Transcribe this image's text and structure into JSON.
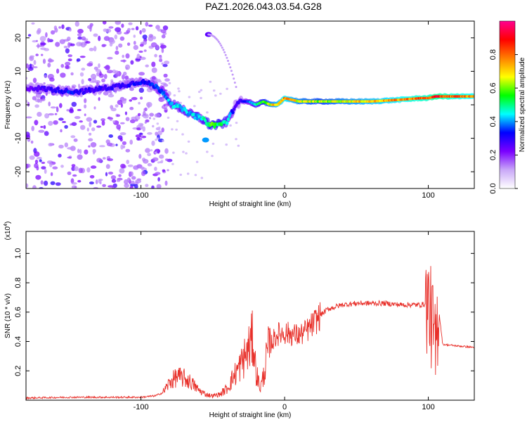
{
  "title": "PAZ1.2026.043.03.54.G28",
  "chart_data": [
    {
      "type": "heatmap",
      "xlabel": "Height of straight line (km)",
      "ylabel": "Frequency (Hz)",
      "xlim": [
        -180,
        132
      ],
      "ylim": [
        -25,
        25
      ],
      "xticks": [
        -100,
        0,
        100
      ],
      "xtick_labels": [
        "-100",
        "0",
        "100"
      ],
      "yticks": [
        -20,
        -10,
        0,
        10,
        20
      ],
      "ytick_labels": [
        "-20",
        "-10",
        "0",
        "10",
        "20"
      ],
      "colorbar": {
        "label": "Normalized spectral amplitude",
        "range": [
          0,
          1
        ],
        "ticks": [
          0.0,
          0.2,
          0.4,
          0.6,
          0.8
        ],
        "tick_labels": [
          "0.0",
          "0.2",
          "0.4",
          "0.6",
          "0.8"
        ],
        "colormap": [
          "#ffffff",
          "#c9a8f8",
          "#7b00ff",
          "#0000ff",
          "#00ffff",
          "#00ff00",
          "#ffff00",
          "#ff8000",
          "#ff0000",
          "#ff0090"
        ]
      },
      "ridge": {
        "x": [
          -175,
          -160,
          -150,
          -140,
          -125,
          -110,
          -100,
          -92,
          -85,
          -78,
          -72,
          -65,
          -58,
          -52,
          -46,
          -40,
          -34,
          -30,
          -25,
          -20,
          -15,
          -10,
          -5,
          0,
          10,
          25,
          40,
          60,
          80,
          95,
          100,
          105,
          115,
          132
        ],
        "freq": [
          5,
          4.5,
          4,
          4,
          5,
          6,
          7,
          6,
          4,
          0,
          -1,
          -3,
          -4,
          -6,
          -6,
          -5,
          0,
          1,
          1,
          0,
          1,
          0,
          0,
          2,
          1,
          1,
          1,
          1,
          1.5,
          2,
          2,
          2.5,
          2.5,
          2.5
        ],
        "amplitude": [
          0.25,
          0.3,
          0.35,
          0.3,
          0.3,
          0.3,
          0.35,
          0.35,
          0.4,
          0.45,
          0.45,
          0.45,
          0.45,
          0.6,
          0.55,
          0.5,
          0.25,
          0.3,
          0.4,
          0.5,
          0.6,
          0.7,
          0.75,
          0.8,
          0.7,
          0.65,
          0.7,
          0.75,
          0.8,
          0.85,
          0.85,
          0.9,
          0.85,
          0.8
        ]
      },
      "annotations": [
        {
          "x": -55,
          "freq": -10.5,
          "amplitude": 0.4,
          "label": ""
        },
        {
          "x": -53,
          "freq": 21,
          "amplitude": 0.25,
          "label": ""
        }
      ]
    },
    {
      "type": "line",
      "xlabel": "Height of straight line (km)",
      "ylabel": "SNR (10 * v/v)",
      "y_scale_label": "(x10",
      "y_scale_exponent": "4",
      "y_scale_suffix": ")",
      "xlim": [
        -180,
        132
      ],
      "ylim": [
        0,
        1.15
      ],
      "xticks": [
        -100,
        0,
        100
      ],
      "xtick_labels": [
        "-100",
        "0",
        "100"
      ],
      "yticks": [
        0.2,
        0.4,
        0.6,
        0.8,
        1.0
      ],
      "ytick_labels": [
        "0.2",
        "0.4",
        "0.6",
        "0.8",
        "1.0"
      ],
      "color": "#e8302a",
      "series": [
        {
          "name": "SNR",
          "x": [
            -180,
            -150,
            -120,
            -100,
            -90,
            -85,
            -80,
            -75,
            -70,
            -65,
            -60,
            -55,
            -50,
            -45,
            -40,
            -35,
            -30,
            -25,
            -22,
            -20,
            -17,
            -15,
            -12,
            -10,
            -5,
            0,
            5,
            10,
            15,
            20,
            25,
            30,
            40,
            50,
            60,
            70,
            80,
            90,
            95,
            100,
            103,
            105,
            107,
            110,
            120,
            132
          ],
          "y": [
            0.015,
            0.02,
            0.02,
            0.02,
            0.03,
            0.05,
            0.12,
            0.16,
            0.15,
            0.12,
            0.07,
            0.04,
            0.03,
            0.04,
            0.08,
            0.17,
            0.25,
            0.35,
            0.42,
            0.2,
            0.08,
            0.15,
            0.32,
            0.38,
            0.45,
            0.46,
            0.45,
            0.44,
            0.47,
            0.52,
            0.58,
            0.62,
            0.65,
            0.66,
            0.66,
            0.66,
            0.65,
            0.65,
            0.65,
            0.66,
            0.5,
            0.3,
            0.64,
            0.38,
            0.37,
            0.36
          ]
        }
      ]
    }
  ]
}
